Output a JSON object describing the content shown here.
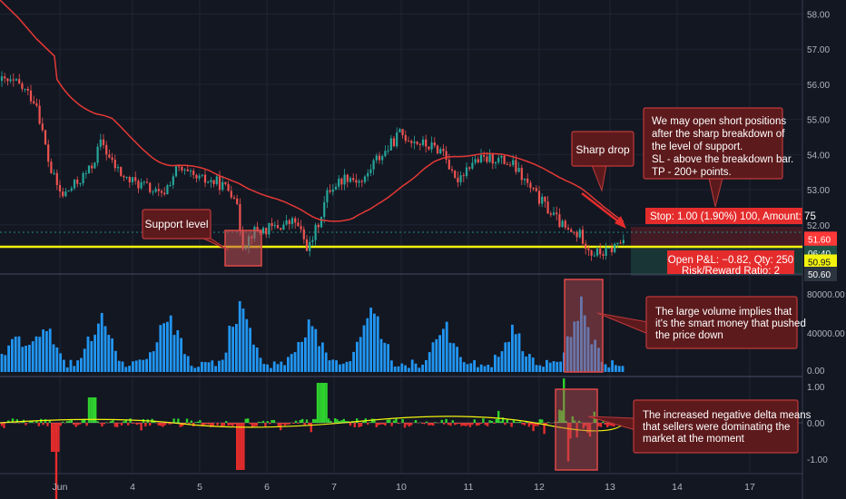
{
  "chart_data": [
    {
      "type": "candlestick",
      "panel": "price",
      "x": [
        "Jun",
        "4",
        "5",
        "6",
        "7",
        "10",
        "11",
        "12",
        "13",
        "14",
        "17"
      ],
      "ylim": [
        50.6,
        58.4
      ],
      "yticks": [
        "58.00",
        "57.00",
        "56.00",
        "55.00",
        "54.00",
        "53.00",
        "52.00"
      ],
      "moving_average": "red line",
      "support_level": 51.2,
      "price_labels": [
        {
          "text": "51.60",
          "value": 51.6,
          "color": "#ff3838"
        },
        {
          "text": "06:40",
          "value": 51.2,
          "color": "#1f4f45"
        },
        {
          "text": "50.95",
          "value": 50.95,
          "color": "#f3f30e"
        },
        {
          "text": "50.60",
          "value": 50.6,
          "color": "#2c3440"
        }
      ],
      "annotations": {
        "support": "Support level",
        "drop": "Sharp drop",
        "note": [
          "We may open short positions",
          "after the sharp breakdown of",
          "the level of support.",
          "SL - above the breakdown bar.",
          "TP - 200+ points."
        ],
        "stop_label": "Stop: 1.00 (1.90%) 100, Amount: 75",
        "pnl_line1": "Open P&L: −0.82, Qty: 250",
        "pnl_line2": "Risk/Reward Ratio: 2"
      }
    },
    {
      "type": "bar",
      "panel": "volume",
      "ylim": [
        0,
        95000
      ],
      "yticks": [
        "80000.00",
        "40000.00",
        "0.00"
      ],
      "note": [
        "The large volume implies that",
        "it's the smart money that pushed",
        "the price down"
      ]
    },
    {
      "type": "area",
      "panel": "delta",
      "ylim": [
        -1.3,
        1.3
      ],
      "yticks": [
        "1.00",
        "0.00",
        "-1.00"
      ],
      "note": [
        "The increased negative delta means",
        "that sellers were dominating the",
        "market at the moment"
      ]
    }
  ],
  "colors": {
    "background": "#131722",
    "bull": "#26a69a",
    "bear": "#ef5350",
    "ma": "#e53935",
    "volume": "#2196f3",
    "support": "#f3f30e",
    "callout_fill": "#5d1a1c",
    "callout_border": "#c0393b"
  }
}
